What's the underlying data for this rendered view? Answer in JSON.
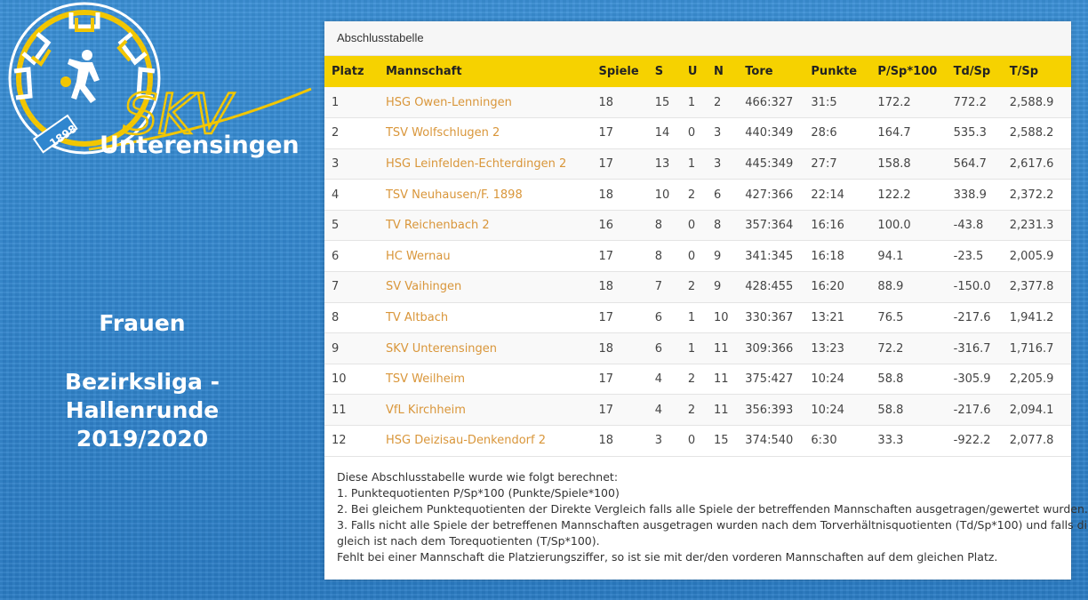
{
  "logo": {
    "wordmark": "SKV",
    "name": "Unterensingen",
    "year": "1898",
    "colors": {
      "ring": "#f2c600",
      "white": "#ffffff"
    }
  },
  "caption": {
    "line1": "Frauen",
    "line2": "Bezirksliga -",
    "line3": "Hallenrunde",
    "line4": "2019/2020"
  },
  "panel": {
    "title": "Abschlusstabelle",
    "headers": [
      "Platz",
      "Mannschaft",
      "Spiele",
      "S",
      "U",
      "N",
      "Tore",
      "Punkte",
      "P/Sp*100",
      "Td/Sp",
      "T/Sp"
    ],
    "rows": [
      [
        "1",
        "HSG Owen-Lenningen",
        "18",
        "15",
        "1",
        "2",
        "466:327",
        "31:5",
        "172.2",
        "772.2",
        "2,588.9"
      ],
      [
        "2",
        "TSV Wolfschlugen 2",
        "17",
        "14",
        "0",
        "3",
        "440:349",
        "28:6",
        "164.7",
        "535.3",
        "2,588.2"
      ],
      [
        "3",
        "HSG Leinfelden-Echterdingen 2",
        "17",
        "13",
        "1",
        "3",
        "445:349",
        "27:7",
        "158.8",
        "564.7",
        "2,617.6"
      ],
      [
        "4",
        "TSV Neuhausen/F. 1898",
        "18",
        "10",
        "2",
        "6",
        "427:366",
        "22:14",
        "122.2",
        "338.9",
        "2,372.2"
      ],
      [
        "5",
        "TV Reichenbach 2",
        "16",
        "8",
        "0",
        "8",
        "357:364",
        "16:16",
        "100.0",
        "-43.8",
        "2,231.3"
      ],
      [
        "6",
        "HC Wernau",
        "17",
        "8",
        "0",
        "9",
        "341:345",
        "16:18",
        "94.1",
        "-23.5",
        "2,005.9"
      ],
      [
        "7",
        "SV Vaihingen",
        "18",
        "7",
        "2",
        "9",
        "428:455",
        "16:20",
        "88.9",
        "-150.0",
        "2,377.8"
      ],
      [
        "8",
        "TV Altbach",
        "17",
        "6",
        "1",
        "10",
        "330:367",
        "13:21",
        "76.5",
        "-217.6",
        "1,941.2"
      ],
      [
        "9",
        "SKV Unterensingen",
        "18",
        "6",
        "1",
        "11",
        "309:366",
        "13:23",
        "72.2",
        "-316.7",
        "1,716.7"
      ],
      [
        "10",
        "TSV Weilheim",
        "17",
        "4",
        "2",
        "11",
        "375:427",
        "10:24",
        "58.8",
        "-305.9",
        "2,205.9"
      ],
      [
        "11",
        "VfL Kirchheim",
        "17",
        "4",
        "2",
        "11",
        "356:393",
        "10:24",
        "58.8",
        "-217.6",
        "2,094.1"
      ],
      [
        "12",
        "HSG Deizisau-Denkendorf 2",
        "18",
        "3",
        "0",
        "15",
        "374:540",
        "6:30",
        "33.3",
        "-922.2",
        "2,077.8"
      ]
    ],
    "notes": [
      "Diese Abschlusstabelle wurde wie folgt berechnet:",
      "1. Punktequotienten P/Sp*100 (Punkte/Spiele*100)",
      "2. Bei gleichem Punktequotienten der Direkte Vergleich falls alle Spiele der betreffenden Mannschaften ausgetragen/gewertet wurden.",
      "3. Falls nicht alle Spiele der betreffenen Mannschaften ausgetragen wurden nach dem Torverhältnisquotienten (Td/Sp*100) und falls di",
      "gleich ist nach dem Torequotienten (T/Sp*100).",
      "Fehlt bei einer Mannschaft die Platzierungsziffer, so ist sie mit der/den vorderen Mannschaften auf dem gleichen Platz."
    ]
  }
}
